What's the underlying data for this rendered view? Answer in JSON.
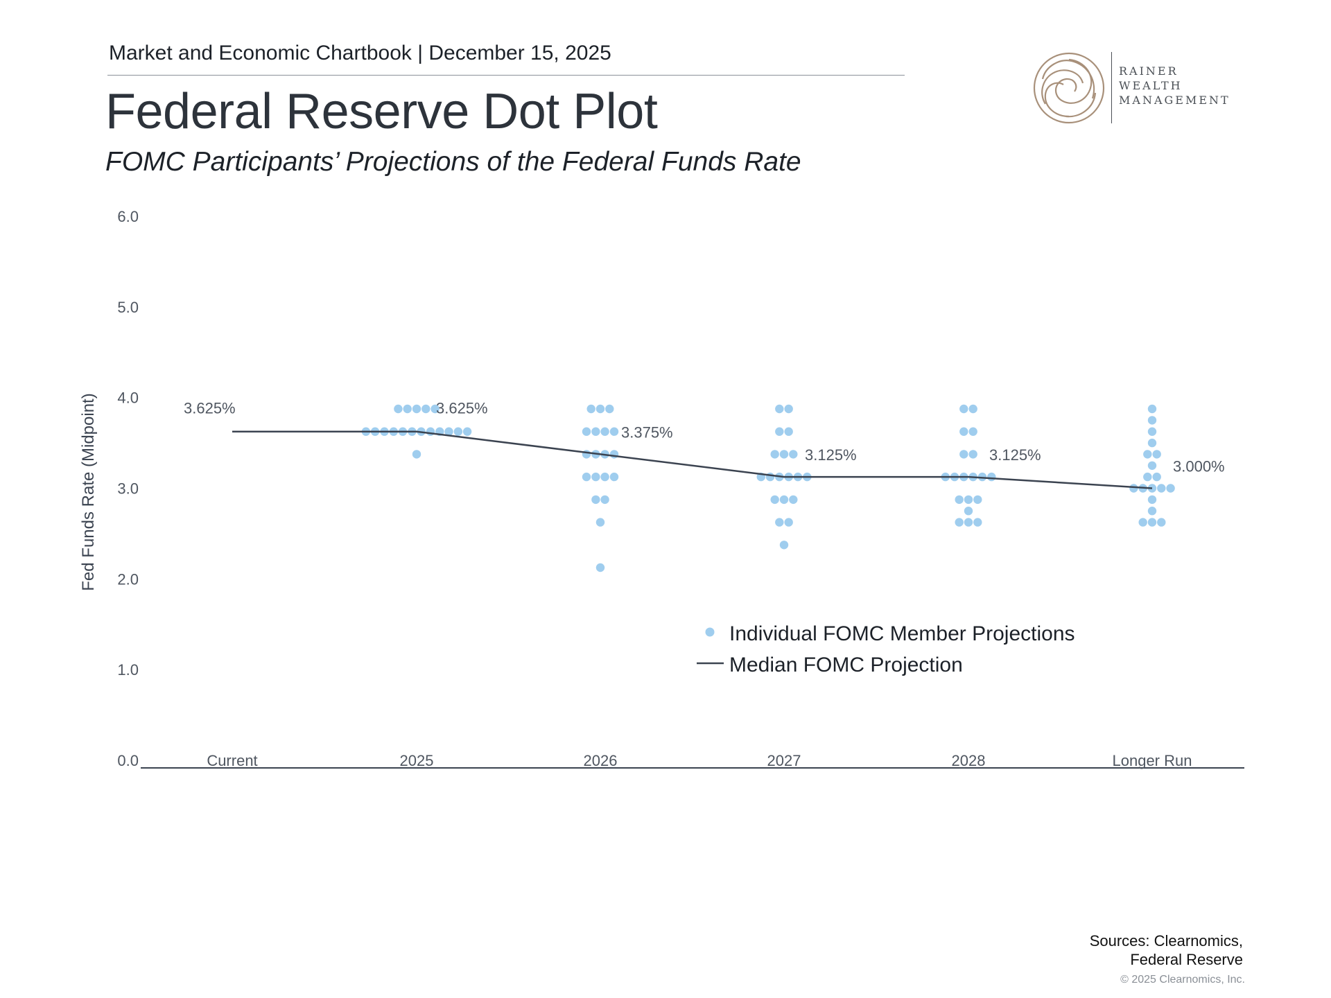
{
  "header": {
    "chartbook_line": "Market and Economic Chartbook | December 15, 2025",
    "title": "Federal Reserve Dot Plot",
    "subtitle": "FOMC Participants’ Projections of the Federal Funds Rate"
  },
  "logo": {
    "lines": [
      "RAINER",
      "WEALTH",
      "MANAGEMENT"
    ]
  },
  "footer": {
    "sources_line1": "Sources: Clearnomics,",
    "sources_line2": "Federal Reserve",
    "copyright": "© 2025 Clearnomics, Inc."
  },
  "colors": {
    "dot": "#9fcdee",
    "median_line": "#3b4350",
    "axis": "#3b4350",
    "tick_text": "#4f5660",
    "logo_gold": "#a8907a"
  },
  "chart_data": {
    "type": "scatter",
    "title": "Federal Reserve Dot Plot",
    "ylabel": "Fed Funds Rate (Midpoint)",
    "xlabel": "",
    "ylim": [
      0,
      6
    ],
    "yticks": [
      "0.0",
      "1.0",
      "2.0",
      "3.0",
      "4.0",
      "5.0",
      "6.0"
    ],
    "categories": [
      "Current",
      "2025",
      "2026",
      "2027",
      "2028",
      "Longer Run"
    ],
    "series": [
      {
        "name": "Individual FOMC Member Projections",
        "kind": "dots",
        "points": [
          [],
          [
            [
              3.875,
              5
            ],
            [
              3.625,
              12
            ],
            [
              3.375,
              1
            ]
          ],
          [
            [
              3.875,
              3
            ],
            [
              3.625,
              4
            ],
            [
              3.375,
              4
            ],
            [
              3.125,
              4
            ],
            [
              2.875,
              2
            ],
            [
              2.625,
              1
            ],
            [
              2.125,
              1
            ]
          ],
          [
            [
              3.875,
              2
            ],
            [
              3.625,
              2
            ],
            [
              3.375,
              3
            ],
            [
              3.125,
              6
            ],
            [
              2.875,
              3
            ],
            [
              2.625,
              2
            ],
            [
              2.375,
              1
            ]
          ],
          [
            [
              3.875,
              2
            ],
            [
              3.625,
              2
            ],
            [
              3.375,
              2
            ],
            [
              3.125,
              6
            ],
            [
              2.875,
              3
            ],
            [
              2.75,
              1
            ],
            [
              2.625,
              3
            ]
          ],
          [
            [
              3.875,
              1
            ],
            [
              3.75,
              1
            ],
            [
              3.625,
              1
            ],
            [
              3.5,
              1
            ],
            [
              3.375,
              2
            ],
            [
              3.25,
              1
            ],
            [
              3.125,
              2
            ],
            [
              3.0,
              5
            ],
            [
              2.875,
              1
            ],
            [
              2.75,
              1
            ],
            [
              2.625,
              3
            ]
          ]
        ]
      },
      {
        "name": "Median FOMC Projection",
        "kind": "line",
        "values": [
          3.625,
          3.625,
          3.375,
          3.125,
          3.125,
          3.0
        ]
      }
    ],
    "data_labels": [
      "3.625%",
      "3.625%",
      "3.375%",
      "3.125%",
      "3.125%",
      "3.000%"
    ],
    "legend": {
      "placement": "center-lower",
      "entries": [
        "Individual FOMC Member Projections",
        "Median FOMC Projection"
      ]
    }
  }
}
